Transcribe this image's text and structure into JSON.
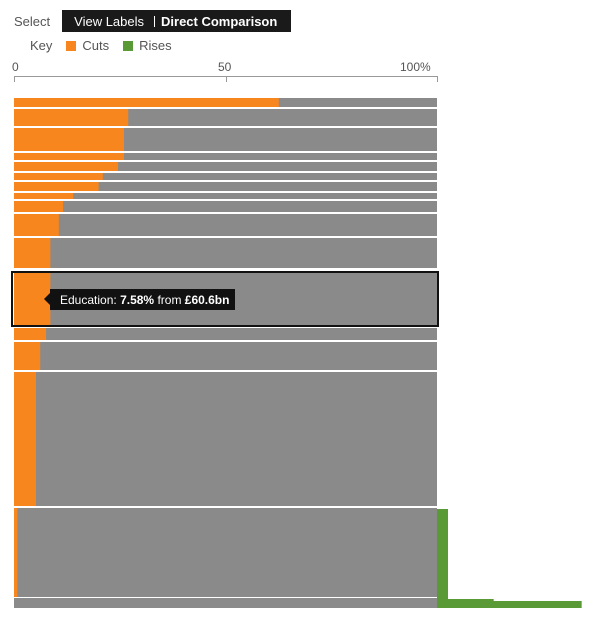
{
  "controls": {
    "select_label": "Select",
    "options": [
      "View Labels",
      "Direct Comparison"
    ],
    "active": "Direct Comparison"
  },
  "key": {
    "label": "Key",
    "items": [
      {
        "label": "Cuts",
        "color": "#f7861e"
      },
      {
        "label": "Rises",
        "color": "#5a9a36"
      }
    ]
  },
  "colors": {
    "base": "#8a8a8a",
    "highlight_border": "#111111"
  },
  "tooltip": {
    "name": "Education:",
    "value": "7.58%",
    "from": "from",
    "amount": "£60.6bn"
  },
  "chart_data": {
    "type": "bar",
    "orientation": "horizontal",
    "xlim": [
      0,
      100
    ],
    "x_ticks": [
      "0",
      "50",
      "100%"
    ],
    "title": "",
    "xlabel": "",
    "ylabel": "",
    "highlighted": "Education",
    "series": [
      {
        "name": "Cuts",
        "values": [
          62.6,
          27,
          26,
          26,
          24.6,
          21,
          20,
          14,
          11.6,
          10.6,
          8.6,
          8.6,
          7.58,
          6.2,
          5.2,
          0.8,
          0.8,
          0,
          0,
          0,
          0
        ]
      },
      {
        "name": "Rises",
        "values": [
          0,
          0,
          0,
          0,
          0,
          0,
          0,
          0,
          0,
          0,
          0,
          0,
          0,
          0,
          0,
          0,
          0,
          2.6,
          0,
          13.4,
          34.2
        ]
      }
    ]
  }
}
